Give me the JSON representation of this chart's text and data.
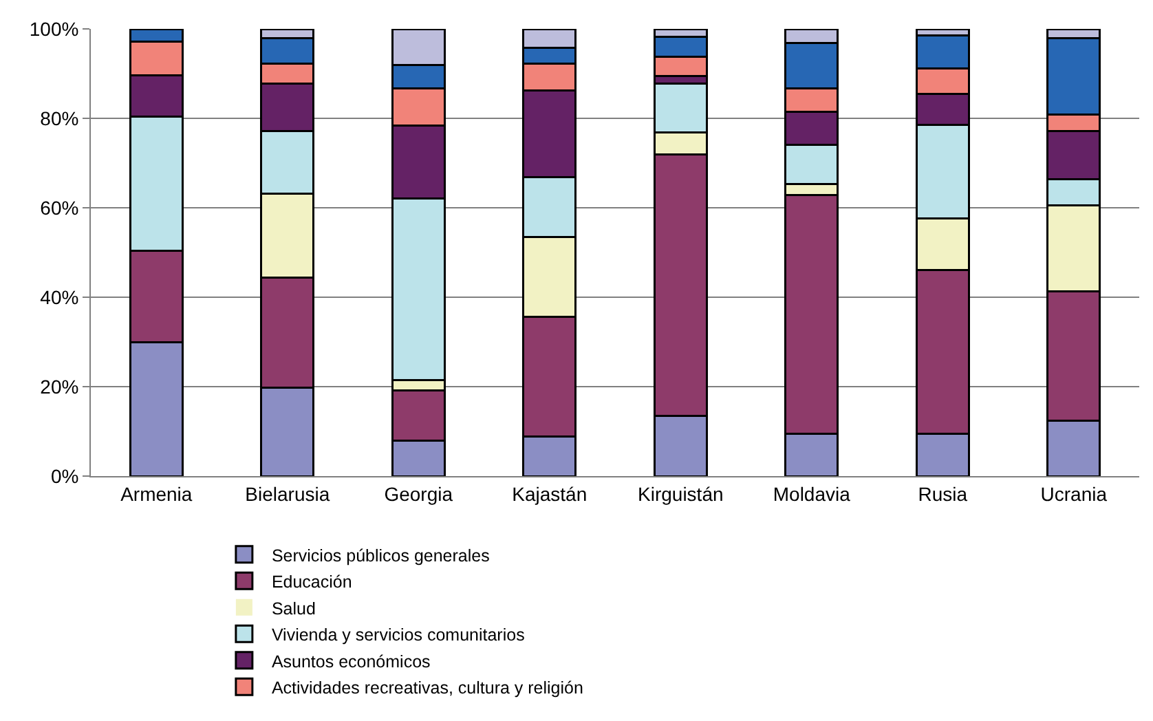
{
  "chart_data": {
    "type": "bar",
    "stacked": true,
    "categories": [
      "Armenia",
      "Bielarusia",
      "Georgia",
      "Kajastán",
      "Kirguistán",
      "Moldavia",
      "Rusia",
      "Ucrania"
    ],
    "series": [
      {
        "name": "Servicios públicos generales",
        "color": "#8b8ec4",
        "values": [
          30.0,
          19.7,
          8.0,
          8.9,
          13.4,
          9.5,
          9.5,
          12.4
        ]
      },
      {
        "name": "Educación",
        "color": "#8e3b6a",
        "values": [
          20.4,
          24.7,
          11.1,
          26.7,
          58.5,
          53.4,
          36.6,
          28.9
        ]
      },
      {
        "name": "Salud",
        "color": "#f2f2c4",
        "values": [
          0,
          18.8,
          2.3,
          17.9,
          5.0,
          2.4,
          11.5,
          19.2
        ]
      },
      {
        "name": "Vivienda y servicios comunitarios",
        "color": "#bce3ea",
        "values": [
          30.0,
          14.0,
          40.7,
          13.4,
          10.8,
          8.8,
          20.9,
          5.9
        ]
      },
      {
        "name": "Asuntos económicos",
        "color": "#642265",
        "values": [
          9.2,
          10.5,
          16.3,
          19.4,
          1.7,
          7.4,
          6.9,
          10.8
        ]
      },
      {
        "name": "Actividades recreativas, cultura y religión",
        "color": "#f18379",
        "values": [
          7.6,
          4.5,
          8.3,
          5.9,
          4.4,
          5.2,
          5.7,
          3.7
        ]
      },
      {
        "color": "#2767b4",
        "values": [
          2.8,
          5.8,
          5.3,
          3.5,
          4.5,
          10.2,
          7.4,
          17.1
        ]
      },
      {
        "color": "#bdbddc",
        "values": [
          0,
          2.0,
          8.0,
          4.3,
          1.7,
          3.1,
          1.5,
          2.0
        ]
      }
    ],
    "ylim": [
      0,
      100
    ],
    "yticks": [
      {
        "value": 0,
        "label": "0%"
      },
      {
        "value": 20,
        "label": "20%"
      },
      {
        "value": 40,
        "label": "40%"
      },
      {
        "value": 60,
        "label": "60%"
      },
      {
        "value": 80,
        "label": "80%"
      },
      {
        "value": 100,
        "label": "100%"
      }
    ],
    "grid": "y",
    "legend": "bottom"
  }
}
